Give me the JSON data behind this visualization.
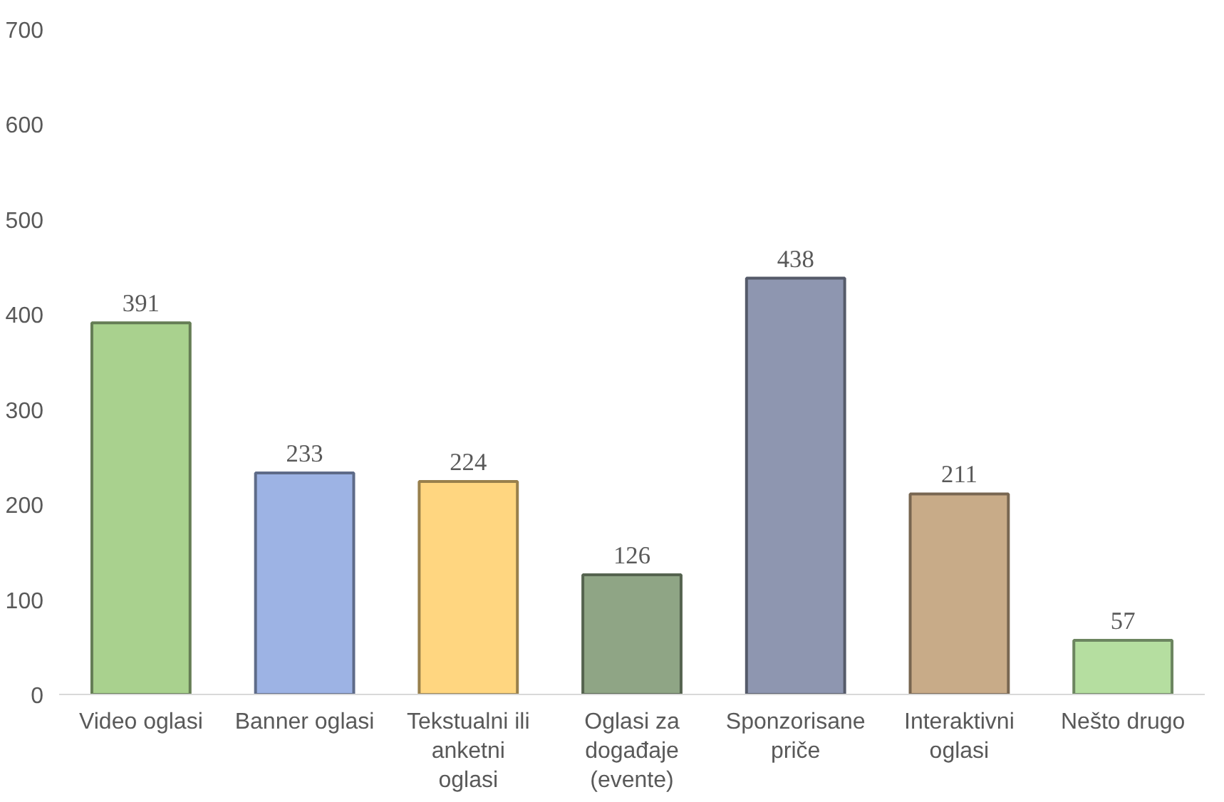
{
  "chart_data": {
    "type": "bar",
    "categories": [
      "Video oglasi",
      "Banner oglasi",
      "Tekstualni ili\nanketni\noglasi",
      "Oglasi za\ndogađaje\n(evente)",
      "Sponzorisane\npriče",
      "Interaktivni\noglasi",
      "Nešto drugo"
    ],
    "values": [
      391,
      233,
      224,
      126,
      438,
      211,
      57
    ],
    "colors": [
      "#a9d18e",
      "#9db3e4",
      "#ffd680",
      "#8fa585",
      "#8e96b0",
      "#c8ab88",
      "#b5dea0"
    ],
    "ylim": [
      0,
      700
    ],
    "yticks": [
      0,
      100,
      200,
      300,
      400,
      500,
      600,
      700
    ],
    "grid": false,
    "data_labels": true
  }
}
